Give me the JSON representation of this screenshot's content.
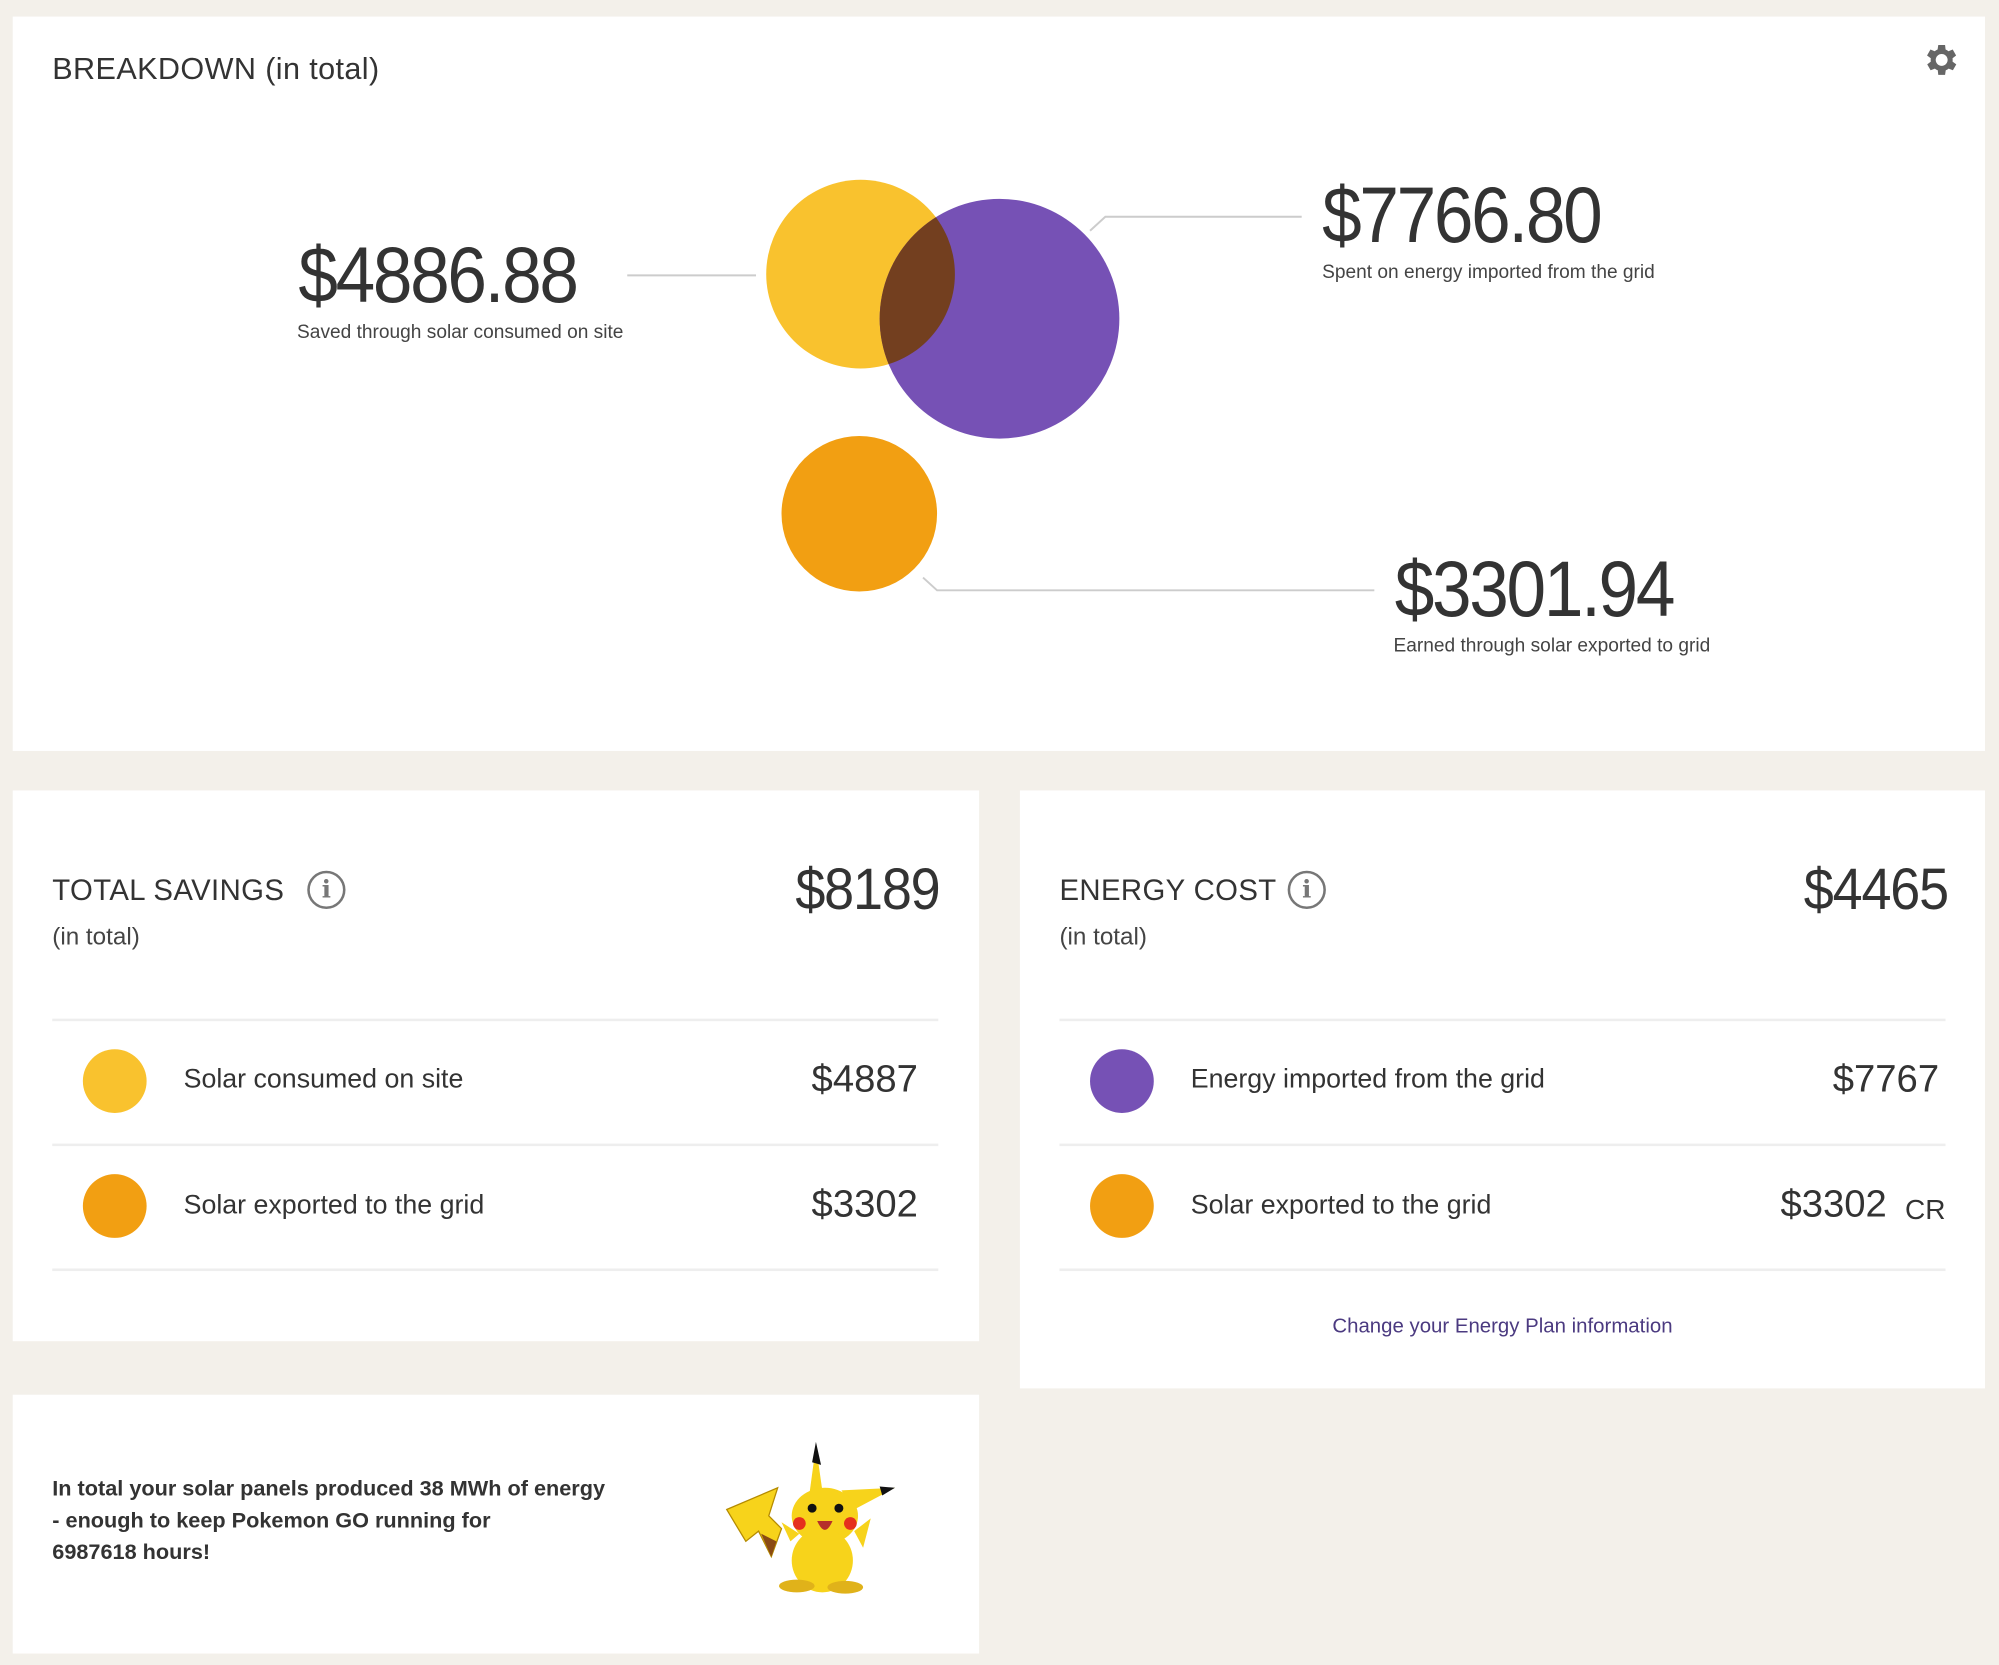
{
  "breakdown": {
    "title": "BREAKDOWN (in total)",
    "settings_icon": "gear-icon",
    "saved": {
      "amount": "$4886.88",
      "caption": "Saved through solar consumed on site",
      "color": "#f9c22e"
    },
    "spent": {
      "amount": "$7766.80",
      "caption": "Spent on energy imported from the grid",
      "color": "#7651b5"
    },
    "earned": {
      "amount": "$3301.94",
      "caption": "Earned through solar exported to grid",
      "color": "#f29f12"
    },
    "overlap_color": "#733f1f"
  },
  "savings": {
    "title": "TOTAL SAVINGS",
    "subtitle": "(in total)",
    "total": "$8189",
    "rows": [
      {
        "label": "Solar consumed on site",
        "value": "$4887",
        "color": "#f9c22e"
      },
      {
        "label": "Solar exported to the grid",
        "value": "$3302",
        "color": "#f29f12"
      }
    ]
  },
  "cost": {
    "title": "ENERGY COST",
    "subtitle": "(in total)",
    "total": "$4465",
    "rows": [
      {
        "label": "Energy imported from the grid",
        "value": "$7767",
        "suffix": "",
        "color": "#7651b5"
      },
      {
        "label": "Solar exported to the grid",
        "value": "$3302",
        "suffix": "CR",
        "color": "#f29f12"
      }
    ],
    "link": "Change your Energy Plan information"
  },
  "fun_fact": {
    "lines": [
      "In total your solar panels produced 38 MWh of energy",
      "- enough to keep Pokemon GO running for",
      "6987618 hours!"
    ],
    "image": "pikachu"
  }
}
